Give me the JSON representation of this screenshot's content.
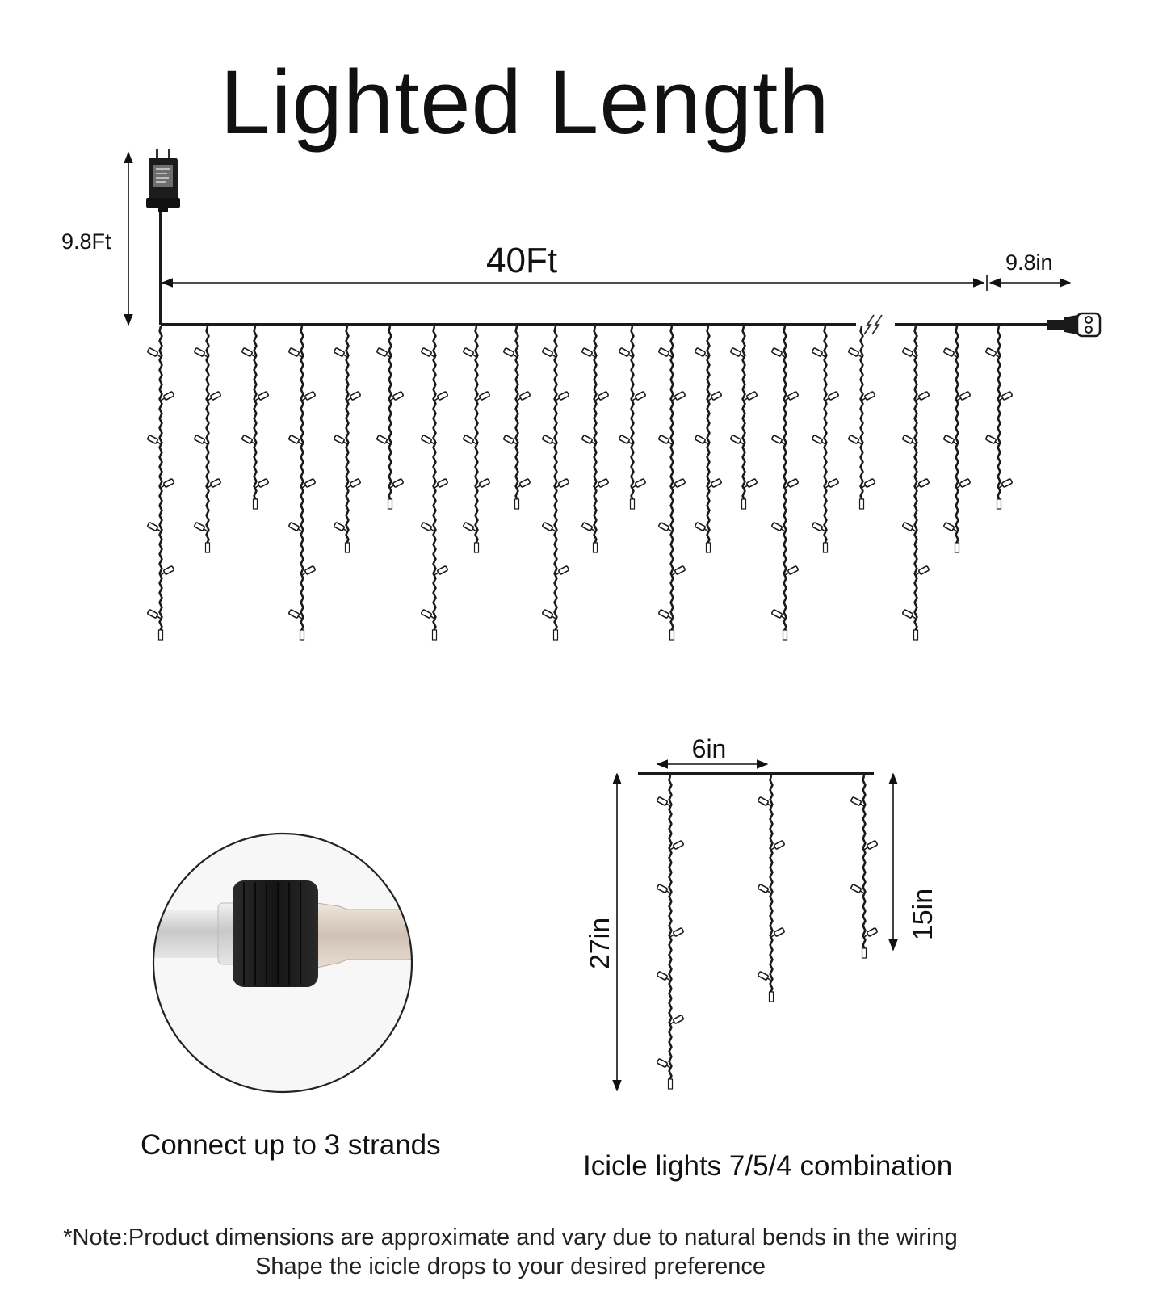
{
  "title": "Lighted Length",
  "labels": {
    "lead_wire": "9.8Ft",
    "lighted_length": "40Ft",
    "end_wire": "9.8in",
    "spacing": "6in",
    "long_drop": "27in",
    "short_drop": "15in"
  },
  "captions": {
    "connector": "Connect up to 3 strands",
    "combination": "Icicle lights 7/5/4 combination"
  },
  "note": {
    "line1": "*Note:Product dimensions are approximate and vary due to natural bends in the wiring",
    "line2": "Shape the icicle drops to your desired preference"
  },
  "icicle_pattern": [
    7,
    5,
    4
  ],
  "colors": {
    "wire": "#1a1a1a",
    "bulb": "#ffffff",
    "connector_body": "#1e1e1e",
    "cable": "#d8d8d8"
  },
  "icons": {
    "adapter": "power-adapter-icon",
    "end_plug": "end-connector-icon",
    "break": "break-symbol-icon"
  }
}
